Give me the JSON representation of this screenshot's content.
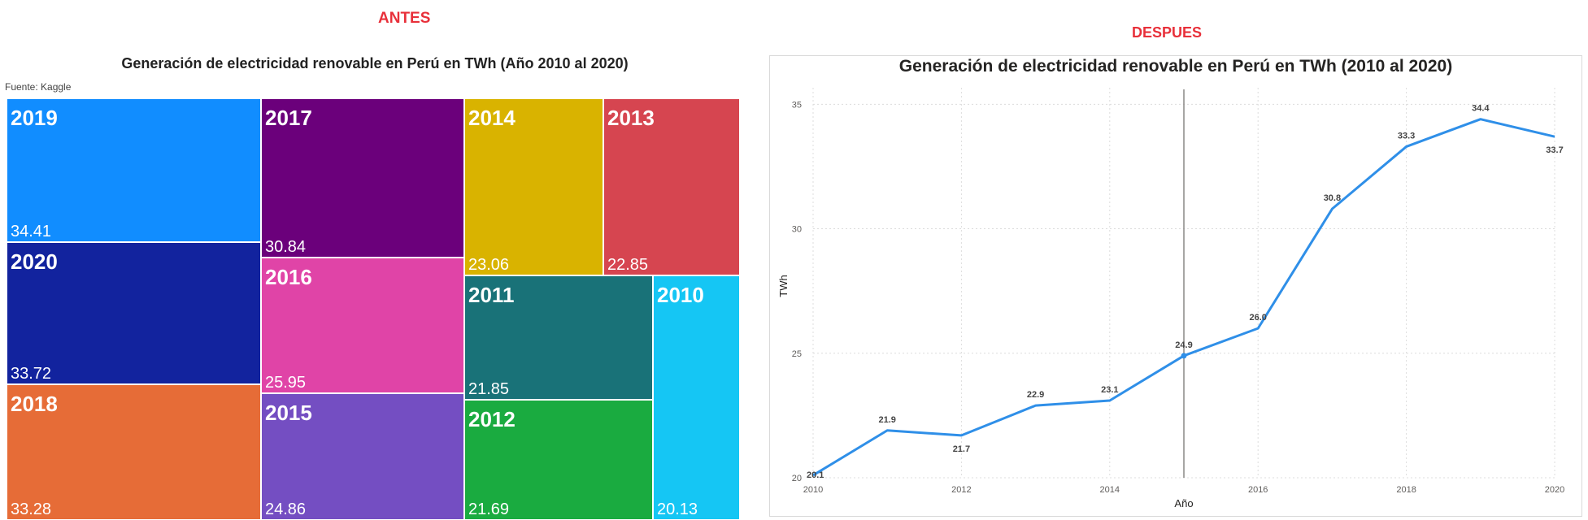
{
  "labels": {
    "antes": "ANTES",
    "despues": "DESPUES"
  },
  "colors": {
    "label_red": "#e8303a",
    "line": "#2f8fe8",
    "tile_text": "#ffffff"
  },
  "chart_data": [
    {
      "type": "treemap",
      "title": "Generación de electricidad renovable en Perú en TWh (Año 2010 al 2020)",
      "source": "Fuente: Kaggle",
      "items": [
        {
          "year": "2019",
          "value": 34.41,
          "label": "34.41",
          "color": "#118dff"
        },
        {
          "year": "2020",
          "value": 33.72,
          "label": "33.72",
          "color": "#12239e"
        },
        {
          "year": "2018",
          "value": 33.28,
          "label": "33.28",
          "color": "#e66c37"
        },
        {
          "year": "2017",
          "value": 30.84,
          "label": "30.84",
          "color": "#6b007b"
        },
        {
          "year": "2016",
          "value": 25.95,
          "label": "25.95",
          "color": "#e044a7"
        },
        {
          "year": "2015",
          "value": 24.86,
          "label": "24.86",
          "color": "#744ec2"
        },
        {
          "year": "2014",
          "value": 23.06,
          "label": "23.06",
          "color": "#d9b300"
        },
        {
          "year": "2013",
          "value": 22.85,
          "label": "22.85",
          "color": "#d64550"
        },
        {
          "year": "2011",
          "value": 21.85,
          "label": "21.85",
          "color": "#197278"
        },
        {
          "year": "2012",
          "value": 21.69,
          "label": "21.69",
          "color": "#1aab40"
        },
        {
          "year": "2010",
          "value": 20.13,
          "label": "20.13",
          "color": "#15c6f4"
        }
      ]
    },
    {
      "type": "line",
      "title": "Generación de electricidad renovable en Perú en TWh (2010 al 2020)",
      "xlabel": "Año",
      "ylabel": "TWh",
      "x": [
        2010,
        2011,
        2012,
        2013,
        2014,
        2015,
        2016,
        2017,
        2018,
        2019,
        2020
      ],
      "series": [
        {
          "values": [
            20.1,
            21.9,
            21.7,
            22.9,
            23.1,
            24.9,
            26.0,
            30.8,
            33.3,
            34.4,
            33.7
          ],
          "labels": [
            "20.1",
            "21.9",
            "21.7",
            "22.9",
            "23.1",
            "24.9",
            "26.0",
            "30.8",
            "33.3",
            "34.4",
            "33.7"
          ]
        }
      ],
      "xlim": [
        2010,
        2020
      ],
      "ylim": [
        20,
        35.5
      ],
      "x_ticks": [
        "2010",
        "2012",
        "2014",
        "2016",
        "2018",
        "2020"
      ],
      "y_ticks": [
        "20",
        "25",
        "30",
        "35"
      ],
      "reference_line_x": 2015,
      "grid": "dotted"
    }
  ]
}
